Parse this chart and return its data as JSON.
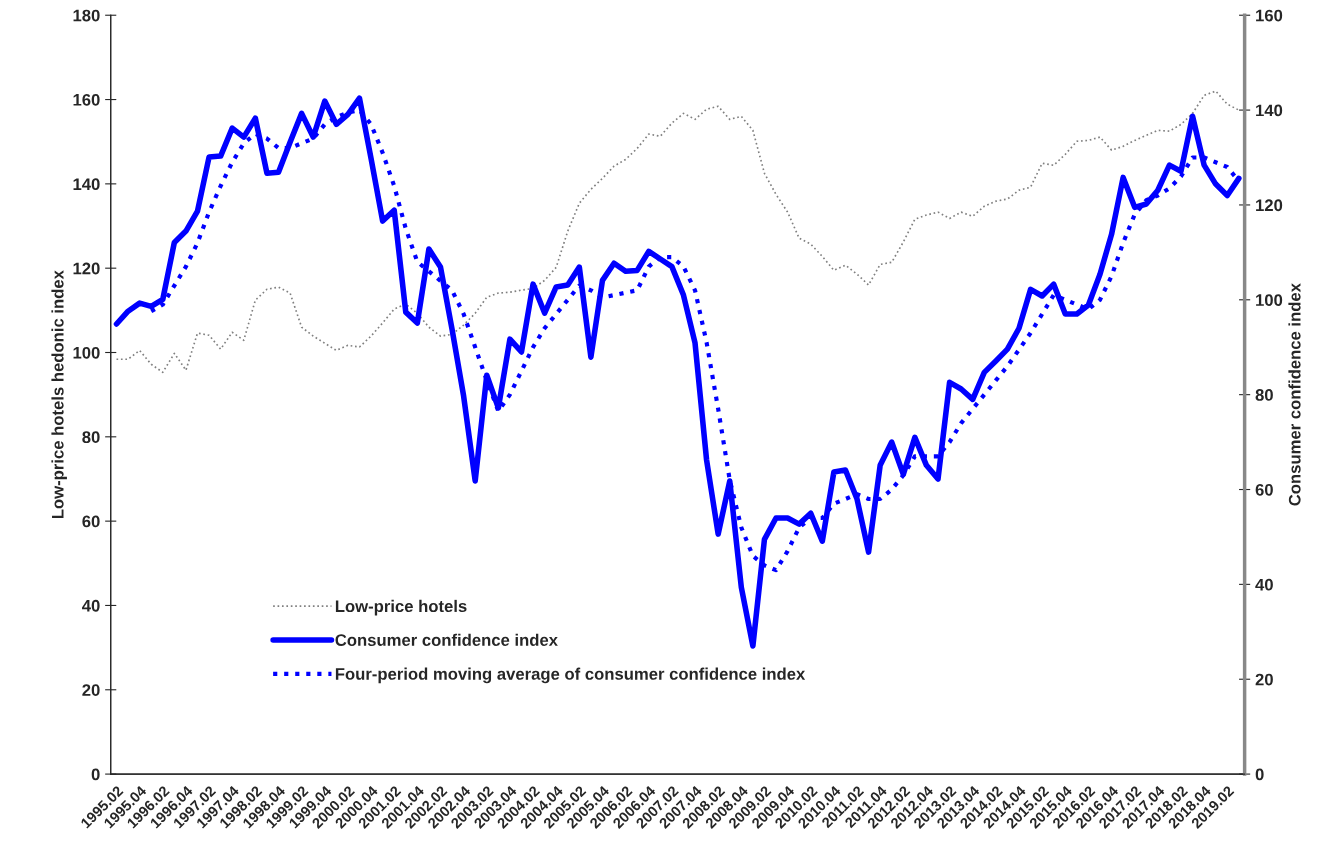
{
  "chart_data": {
    "type": "line",
    "xlabel": null,
    "ylabel": "Low-price hotels hedonic index",
    "y2label": "Consumer confidence index",
    "categories": [
      "1995.02",
      null,
      "1995.04",
      null,
      "1996.02",
      null,
      "1996.04",
      null,
      "1997.02",
      null,
      "1997.04",
      null,
      "1998.02",
      null,
      "1998.04",
      null,
      "1999.02",
      null,
      "1999.04",
      null,
      "2000.02",
      null,
      "2000.04",
      null,
      "2001.02",
      null,
      "2001.04",
      null,
      "2002.02",
      null,
      "2002.04",
      null,
      "2003.02",
      null,
      "2003.04",
      null,
      "2004.02",
      null,
      "2004.04",
      null,
      "2005.02",
      null,
      "2005.04",
      null,
      "2006.02",
      null,
      "2006.04",
      null,
      "2007.02",
      null,
      "2007.04",
      null,
      "2008.02",
      null,
      "2008.04",
      null,
      "2009.02",
      null,
      "2009.04",
      null,
      "2010.02",
      null,
      "2010.04",
      null,
      "2011.02",
      null,
      "2011.04",
      null,
      "2012.02",
      null,
      "2012.04",
      null,
      "2013.02",
      null,
      "2013.04",
      null,
      "2014.02",
      null,
      "2014.04",
      null,
      "2015.02",
      null,
      "2015.04",
      null,
      "2016.02",
      null,
      "2016.04",
      null,
      "2017.02",
      null,
      "2017.04",
      null,
      "2018.02",
      null,
      "2018.04",
      null,
      "2019.02",
      null
    ],
    "series": [
      {
        "name": "Low-price hotels",
        "color": "#808080",
        "line_style": "dotted",
        "values": [
          98.4,
          98.4,
          100.5,
          97.2,
          95.3,
          99.8,
          95.8,
          104.6,
          104.1,
          100.8,
          104.8,
          102.9,
          112.4,
          115.0,
          115.5,
          114.1,
          106.0,
          103.9,
          102.2,
          100.5,
          101.7,
          101.3,
          103.9,
          107.0,
          110.3,
          111.5,
          109.3,
          106.0,
          103.9,
          104.3,
          106.5,
          109.3,
          113.1,
          114.1,
          114.3,
          114.8,
          115.2,
          117.1,
          120.2,
          128.8,
          135.4,
          138.7,
          141.3,
          144.2,
          145.8,
          148.4,
          151.8,
          151.3,
          154.4,
          156.7,
          155.3,
          157.7,
          158.4,
          155.3,
          156.0,
          152.7,
          142.5,
          137.5,
          133.3,
          127.1,
          125.7,
          122.8,
          119.5,
          120.7,
          118.6,
          116.0,
          120.9,
          121.4,
          126.2,
          131.6,
          132.6,
          133.3,
          131.8,
          133.3,
          132.3,
          134.7,
          135.9,
          136.4,
          138.5,
          139.2,
          144.9,
          144.4,
          147.0,
          150.1,
          150.3,
          151.1,
          148.0,
          148.9,
          150.3,
          151.5,
          152.7,
          152.5,
          154.1,
          156.7,
          161.0,
          162.0,
          158.9,
          157.5
        ]
      },
      {
        "name": "Consumer confidence index",
        "color": "#0000ff",
        "line_style": "solid",
        "axis": "y2",
        "values": [
          94.9,
          97.6,
          99.3,
          98.6,
          100.1,
          112.1,
          114.5,
          118.7,
          130.1,
          130.3,
          136.2,
          134.3,
          138.3,
          126.7,
          126.9,
          133.2,
          139.3,
          134.3,
          141.9,
          137.0,
          139.1,
          142.5,
          129.8,
          116.6,
          118.9,
          97.4,
          95.1,
          110.7,
          106.9,
          93.8,
          79.7,
          61.8,
          84.1,
          77.2,
          91.7,
          89.0,
          103.3,
          97.2,
          102.7,
          103.1,
          106.9,
          87.9,
          104.1,
          107.7,
          106.0,
          106.2,
          110.2,
          108.6,
          107.0,
          101.0,
          90.9,
          66.2,
          50.6,
          61.8,
          39.4,
          27.0,
          49.5,
          54.0,
          54.0,
          52.7,
          55.0,
          49.1,
          63.7,
          64.1,
          58.0,
          46.8,
          65.1,
          70.0,
          63.2,
          71.0,
          65.1,
          62.2,
          82.6,
          81.2,
          79.0,
          84.7,
          87.1,
          89.6,
          94.0,
          102.2,
          100.8,
          103.3,
          97.0,
          97.0,
          98.9,
          105.4,
          113.8,
          125.8,
          119.5,
          120.2,
          123.1,
          128.4,
          127.1,
          138.7,
          128.4,
          124.4,
          122.0,
          125.6
        ]
      },
      {
        "name": "Four-period moving average of consumer confidence index",
        "color": "#0000ff",
        "line_style": "dotted",
        "axis": "y2",
        "values": [
          null,
          null,
          null,
          97.6,
          99,
          103,
          107,
          112,
          118.5,
          124,
          129,
          133,
          135,
          134,
          132,
          132,
          133,
          134,
          137,
          138.5,
          139.5,
          140,
          137,
          131,
          124,
          115,
          108,
          106,
          104,
          102,
          97,
          90,
          83,
          76.5,
          80,
          85,
          90,
          94,
          97,
          100,
          103,
          102,
          100.5,
          101,
          101.5,
          102,
          107,
          109,
          109,
          107,
          102,
          91,
          77,
          62,
          52,
          46,
          44,
          43,
          47,
          52,
          54,
          54,
          57,
          58,
          59,
          58,
          58,
          60,
          63,
          67,
          67,
          67,
          70,
          74,
          77,
          80,
          83,
          86,
          89.5,
          93,
          97,
          101,
          100,
          99,
          98,
          100,
          105,
          112,
          118,
          121,
          122,
          123.5,
          126,
          130,
          130,
          129,
          128,
          125
        ]
      }
    ],
    "ylim": [
      0,
      180
    ],
    "yticks": [
      0,
      20,
      40,
      60,
      80,
      100,
      120,
      140,
      160,
      180
    ],
    "y2lim": [
      0,
      160
    ],
    "y2ticks": [
      0,
      20,
      40,
      60,
      80,
      100,
      120,
      140,
      160
    ],
    "grid": false,
    "legend": "bottom left"
  }
}
